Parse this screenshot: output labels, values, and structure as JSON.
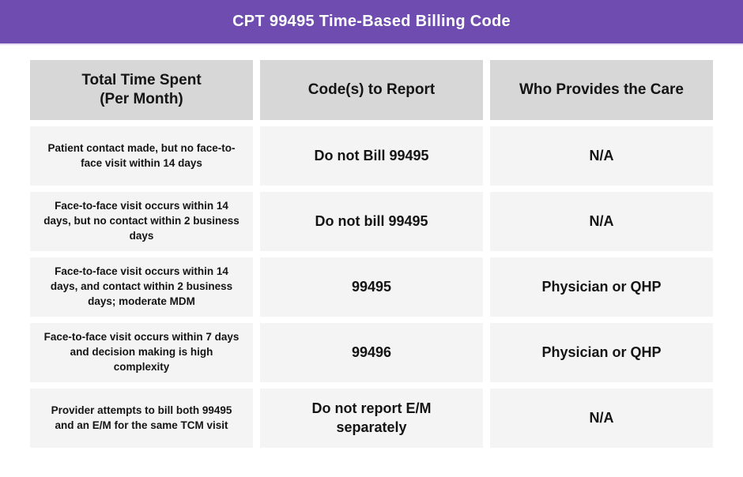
{
  "banner": {
    "title": "CPT 99495 Time-Based Billing Code"
  },
  "colors": {
    "banner_bg": "#6f4db0",
    "banner_text": "#ffffff",
    "banner_edge": "#e7ddf6",
    "header_cell_bg": "#d7d7d7",
    "body_cell_bg": "#f4f4f4",
    "text": "#141414"
  },
  "table": {
    "columns": [
      "Total Time Spent\n(Per Month)",
      "Code(s) to Report",
      "Who Provides the Care"
    ],
    "rows": [
      {
        "time": "Patient contact made, but no face-to-face visit within 14 days",
        "code": "Do not Bill 99495",
        "provider": "N/A"
      },
      {
        "time": "Face-to-face visit occurs within 14 days, but no contact within 2 business days",
        "code": "Do not bill 99495",
        "provider": "N/A"
      },
      {
        "time": "Face-to-face visit occurs within 14 days, and contact within 2 business days; moderate MDM",
        "code": "99495",
        "provider": "Physician or QHP"
      },
      {
        "time": "Face-to-face visit occurs within 7 days and decision making is high complexity",
        "code": "99496",
        "provider": "Physician or QHP"
      },
      {
        "time": "Provider attempts to bill both 99495 and an E/M for the same TCM visit",
        "code": "Do not report E/M separately",
        "provider": "N/A"
      }
    ]
  },
  "chart_data": {
    "type": "table",
    "title": "CPT 99495 Time-Based Billing Code",
    "columns": [
      "Total Time Spent (Per Month)",
      "Code(s) to Report",
      "Who Provides the Care"
    ],
    "rows": [
      [
        "Patient contact made, but no face-to-face visit within 14 days",
        "Do not Bill 99495",
        "N/A"
      ],
      [
        "Face-to-face visit occurs within 14 days, but no contact within 2 business days",
        "Do not bill 99495",
        "N/A"
      ],
      [
        "Face-to-face visit occurs within 14 days, and contact within 2 business days; moderate MDM",
        "99495",
        "Physician or QHP"
      ],
      [
        "Face-to-face visit occurs within 7 days and decision making is high complexity",
        "99496",
        "Physician or QHP"
      ],
      [
        "Provider attempts to bill both 99495 and an E/M for the same TCM visit",
        "Do not report E/M separately",
        "N/A"
      ]
    ]
  }
}
